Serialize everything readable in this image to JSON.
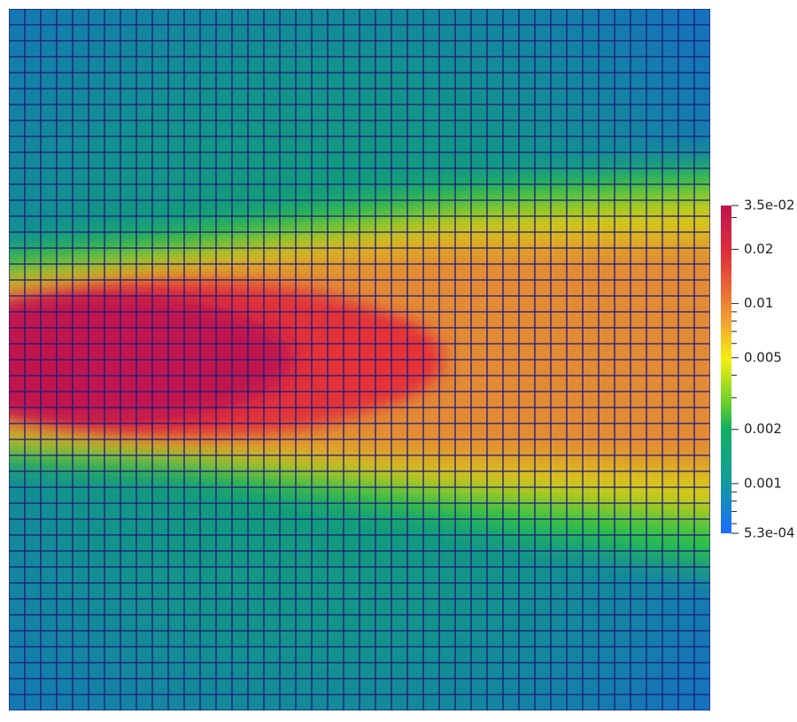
{
  "colorbar": {
    "scale": "log",
    "range": [
      0.00053,
      0.035
    ],
    "ticks": [
      {
        "value": 0.035,
        "label": "3.5e-02"
      },
      0.02,
      0.01,
      0.005,
      0.002,
      0.001,
      {
        "value": 0.00053,
        "label": "5.3e-04"
      }
    ],
    "minor_ticks": [
      0.03,
      0.009,
      0.008,
      0.007,
      0.006,
      0.004,
      0.003,
      0.0009,
      0.0008,
      0.0007,
      0.0006
    ]
  }
}
